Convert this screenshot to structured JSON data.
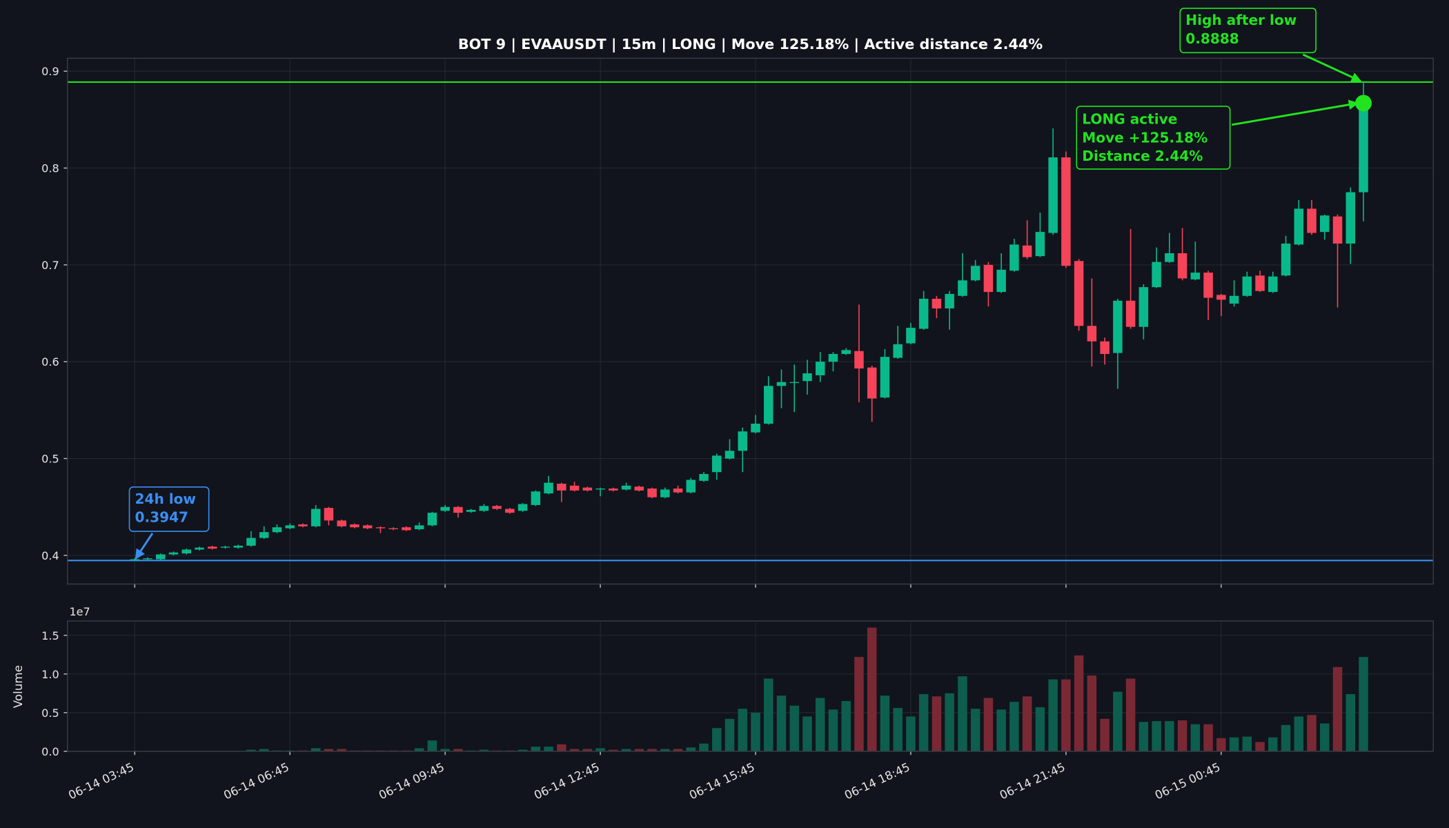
{
  "chart_data": {
    "type": "candlestick",
    "title": "BOT 9 | EVAAUSDT | 15m | LONG | Move 125.18% | Active distance 2.44%",
    "categories": [
      "06-14 03:45",
      null,
      null,
      null,
      null,
      null,
      null,
      null,
      null,
      null,
      null,
      null,
      "06-14 06:45",
      null,
      null,
      null,
      null,
      null,
      null,
      null,
      null,
      null,
      null,
      null,
      "06-14 09:45",
      null,
      null,
      null,
      null,
      null,
      null,
      null,
      null,
      null,
      null,
      null,
      "06-14 12:45",
      null,
      null,
      null,
      null,
      null,
      null,
      null,
      null,
      null,
      null,
      null,
      "06-14 15:45",
      null,
      null,
      null,
      null,
      null,
      null,
      null,
      null,
      null,
      null,
      null,
      "06-14 18:45",
      null,
      null,
      null,
      null,
      null,
      null,
      null,
      null,
      null,
      null,
      null,
      "06-14 21:45",
      null,
      null,
      null,
      null,
      null,
      null,
      null,
      null,
      null,
      null,
      null,
      "06-15 00:45",
      null,
      null,
      null,
      null,
      null,
      null,
      null,
      null,
      null,
      null,
      null
    ],
    "open": [
      0.395,
      0.396,
      0.396,
      0.401,
      0.402,
      0.406,
      0.409,
      0.408,
      0.408,
      0.41,
      0.418,
      0.424,
      0.428,
      0.432,
      0.43,
      0.449,
      0.436,
      0.432,
      0.431,
      0.429,
      0.428,
      0.429,
      0.427,
      0.431,
      0.446,
      0.45,
      0.445,
      0.446,
      0.451,
      0.448,
      0.446,
      0.452,
      0.464,
      0.474,
      0.472,
      0.47,
      0.468,
      0.469,
      0.468,
      0.471,
      0.469,
      0.46,
      0.469,
      0.465,
      0.477,
      0.486,
      0.5,
      0.508,
      0.527,
      0.536,
      0.575,
      0.578,
      0.58,
      0.586,
      0.6,
      0.608,
      0.611,
      0.594,
      0.563,
      0.604,
      0.619,
      0.634,
      0.665,
      0.655,
      0.668,
      0.684,
      0.7,
      0.672,
      0.694,
      0.72,
      0.709,
      0.733,
      0.811,
      0.704,
      0.637,
      0.621,
      0.609,
      0.663,
      0.636,
      0.677,
      0.703,
      0.712,
      0.685,
      0.692,
      0.669,
      0.66,
      0.668,
      0.689,
      0.672,
      0.689,
      0.721,
      0.758,
      0.734,
      0.75,
      0.722,
      0.775
    ],
    "high": [
      0.397,
      0.398,
      0.402,
      0.404,
      0.407,
      0.409,
      0.41,
      0.41,
      0.411,
      0.425,
      0.43,
      0.432,
      0.433,
      0.433,
      0.452,
      0.45,
      0.437,
      0.433,
      0.432,
      0.43,
      0.429,
      0.43,
      0.434,
      0.445,
      0.452,
      0.451,
      0.448,
      0.453,
      0.452,
      0.449,
      0.454,
      0.467,
      0.482,
      0.475,
      0.476,
      0.471,
      0.47,
      0.47,
      0.475,
      0.472,
      0.47,
      0.47,
      0.472,
      0.48,
      0.486,
      0.505,
      0.52,
      0.532,
      0.545,
      0.585,
      0.592,
      0.597,
      0.602,
      0.61,
      0.61,
      0.614,
      0.659,
      0.596,
      0.613,
      0.637,
      0.64,
      0.673,
      0.668,
      0.673,
      0.712,
      0.705,
      0.703,
      0.712,
      0.727,
      0.746,
      0.754,
      0.841,
      0.817,
      0.706,
      0.686,
      0.625,
      0.665,
      0.737,
      0.68,
      0.718,
      0.733,
      0.738,
      0.724,
      0.694,
      0.67,
      0.684,
      0.693,
      0.694,
      0.693,
      0.73,
      0.767,
      0.767,
      0.752,
      0.752,
      0.78,
      0.8888
    ],
    "low": [
      0.3947,
      0.395,
      0.395,
      0.4,
      0.401,
      0.405,
      0.406,
      0.407,
      0.407,
      0.409,
      0.417,
      0.423,
      0.427,
      0.429,
      0.429,
      0.431,
      0.429,
      0.428,
      0.427,
      0.423,
      0.426,
      0.425,
      0.426,
      0.43,
      0.445,
      0.439,
      0.444,
      0.445,
      0.447,
      0.443,
      0.445,
      0.451,
      0.463,
      0.455,
      0.466,
      0.466,
      0.461,
      0.466,
      0.467,
      0.466,
      0.459,
      0.459,
      0.464,
      0.464,
      0.476,
      0.478,
      0.499,
      0.486,
      0.526,
      0.535,
      0.552,
      0.548,
      0.566,
      0.579,
      0.59,
      0.607,
      0.558,
      0.538,
      0.562,
      0.603,
      0.618,
      0.633,
      0.645,
      0.633,
      0.667,
      0.683,
      0.657,
      0.671,
      0.693,
      0.706,
      0.708,
      0.731,
      0.697,
      0.632,
      0.595,
      0.597,
      0.572,
      0.634,
      0.623,
      0.676,
      0.702,
      0.684,
      0.684,
      0.643,
      0.647,
      0.657,
      0.667,
      0.672,
      0.671,
      0.688,
      0.72,
      0.731,
      0.726,
      0.656,
      0.701,
      0.745
    ],
    "close": [
      0.396,
      0.397,
      0.401,
      0.403,
      0.406,
      0.408,
      0.407,
      0.409,
      0.41,
      0.418,
      0.424,
      0.429,
      0.431,
      0.43,
      0.448,
      0.436,
      0.43,
      0.429,
      0.428,
      0.428,
      0.427,
      0.426,
      0.431,
      0.444,
      0.45,
      0.444,
      0.447,
      0.451,
      0.448,
      0.444,
      0.453,
      0.466,
      0.475,
      0.467,
      0.467,
      0.467,
      0.469,
      0.467,
      0.472,
      0.467,
      0.46,
      0.468,
      0.465,
      0.478,
      0.484,
      0.503,
      0.508,
      0.528,
      0.536,
      0.575,
      0.579,
      0.579,
      0.588,
      0.6,
      0.608,
      0.612,
      0.593,
      0.562,
      0.605,
      0.618,
      0.635,
      0.665,
      0.655,
      0.67,
      0.684,
      0.699,
      0.672,
      0.695,
      0.721,
      0.708,
      0.734,
      0.811,
      0.699,
      0.637,
      0.621,
      0.608,
      0.663,
      0.636,
      0.677,
      0.703,
      0.712,
      0.686,
      0.692,
      0.666,
      0.664,
      0.668,
      0.688,
      0.673,
      0.688,
      0.722,
      0.758,
      0.733,
      0.751,
      0.722,
      0.775,
      0.867
    ],
    "ylim": [
      0.3704,
      0.9134
    ],
    "yticks": [
      0.4,
      0.5,
      0.6,
      0.7,
      0.8,
      0.9
    ],
    "grid": true,
    "up_color": "#0ab98b",
    "down_color": "#f5435a",
    "volume": {
      "ylabel": "Volume",
      "offset_label": "1e7",
      "values": [
        0.003,
        0.003,
        0.004,
        0.003,
        0.004,
        0.003,
        0.003,
        0.003,
        0.004,
        0.02,
        0.03,
        0.01,
        0.01,
        0.01,
        0.04,
        0.03,
        0.03,
        0.01,
        0.01,
        0.01,
        0.01,
        0.01,
        0.04,
        0.14,
        0.03,
        0.03,
        0.01,
        0.02,
        0.01,
        0.01,
        0.02,
        0.06,
        0.06,
        0.09,
        0.03,
        0.03,
        0.04,
        0.02,
        0.03,
        0.03,
        0.03,
        0.03,
        0.03,
        0.05,
        0.1,
        0.3,
        0.42,
        0.55,
        0.5,
        0.94,
        0.72,
        0.59,
        0.45,
        0.69,
        0.54,
        0.65,
        1.22,
        1.6,
        0.72,
        0.56,
        0.45,
        0.74,
        0.71,
        0.75,
        0.97,
        0.55,
        0.69,
        0.54,
        0.64,
        0.71,
        0.57,
        0.93,
        0.93,
        1.24,
        0.98,
        0.42,
        0.77,
        0.94,
        0.38,
        0.39,
        0.39,
        0.4,
        0.35,
        0.35,
        0.17,
        0.18,
        0.19,
        0.12,
        0.18,
        0.34,
        0.45,
        0.47,
        0.36,
        1.09,
        0.74,
        1.22
      ],
      "ylim": [
        0,
        1.685
      ],
      "yticks": [
        {
          "value": 0,
          "label": "0.0"
        },
        0.5,
        {
          "value": 1,
          "label": "1.0"
        },
        1.5
      ],
      "up_color": "#0d5e4e",
      "down_color": "#7a2934"
    },
    "low_marker": {
      "label": "24h low",
      "value": 0.3947,
      "color": "#3a8ef2"
    },
    "high_marker": {
      "label": "High after low",
      "value": 0.8888,
      "color": "#22e31f"
    },
    "status_box": {
      "lines": [
        "LONG active",
        "Move +125.18%",
        "Distance 2.44%"
      ],
      "color": "#22e31f"
    }
  }
}
